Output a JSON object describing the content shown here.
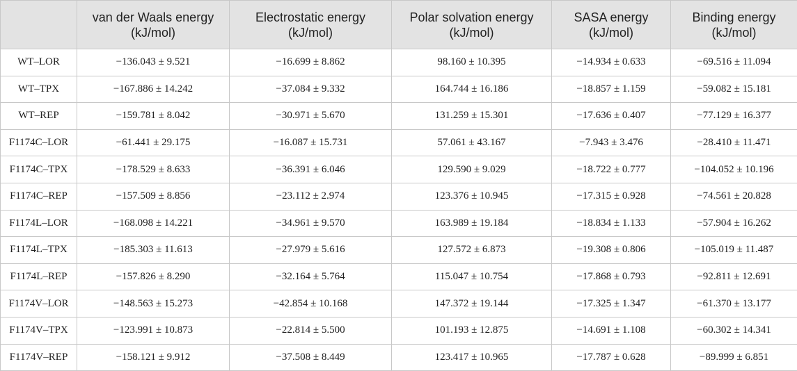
{
  "headers": [
    "",
    "van der Waals energy (kJ/mol)",
    "Electrostatic energy (kJ/mol)",
    "Polar solvation energy (kJ/mol)",
    "SASA energy (kJ/mol)",
    "Binding energy (kJ/mol)"
  ],
  "rows": [
    [
      "WT–LOR",
      "−136.043 ± 9.521",
      "−16.699 ± 8.862",
      "98.160 ± 10.395",
      "−14.934 ± 0.633",
      "−69.516 ± 11.094"
    ],
    [
      "WT–TPX",
      "−167.886 ± 14.242",
      "−37.084 ± 9.332",
      "164.744 ± 16.186",
      "−18.857 ± 1.159",
      "−59.082 ± 15.181"
    ],
    [
      "WT–REP",
      "−159.781 ± 8.042",
      "−30.971 ± 5.670",
      "131.259 ± 15.301",
      "−17.636 ± 0.407",
      "−77.129 ± 16.377"
    ],
    [
      "F1174C–LOR",
      "−61.441 ± 29.175",
      "−16.087 ± 15.731",
      "57.061 ± 43.167",
      "−7.943 ± 3.476",
      "−28.410 ± 11.471"
    ],
    [
      "F1174C–TPX",
      "−178.529 ± 8.633",
      "−36.391 ± 6.046",
      "129.590 ± 9.029",
      "−18.722 ± 0.777",
      "−104.052 ± 10.196"
    ],
    [
      "F1174C–REP",
      "−157.509 ± 8.856",
      "−23.112 ± 2.974",
      "123.376 ± 10.945",
      "−17.315 ± 0.928",
      "−74.561 ± 20.828"
    ],
    [
      "F1174L–LOR",
      "−168.098 ± 14.221",
      "−34.961 ± 9.570",
      "163.989 ± 19.184",
      "−18.834 ± 1.133",
      "−57.904 ± 16.262"
    ],
    [
      "F1174L–TPX",
      "−185.303 ± 11.613",
      "−27.979 ± 5.616",
      "127.572 ± 6.873",
      "−19.308 ± 0.806",
      "−105.019 ± 11.487"
    ],
    [
      "F1174L–REP",
      "−157.826 ± 8.290",
      "−32.164 ± 5.764",
      "115.047 ± 10.754",
      "−17.868 ± 0.793",
      "−92.811 ± 12.691"
    ],
    [
      "F1174V–LOR",
      "−148.563 ± 15.273",
      "−42.854 ± 10.168",
      "147.372 ± 19.144",
      "−17.325 ± 1.347",
      "−61.370 ± 13.177"
    ],
    [
      "F1174V–TPX",
      "−123.991 ± 10.873",
      "−22.814 ± 5.500",
      "101.193 ± 12.875",
      "−14.691 ± 1.108",
      "−60.302 ± 14.341"
    ],
    [
      "F1174V–REP",
      "−158.121 ± 9.912",
      "−37.508 ± 8.449",
      "123.417 ± 10.965",
      "−17.787 ± 0.628",
      "−89.999 ± 6.851"
    ]
  ]
}
